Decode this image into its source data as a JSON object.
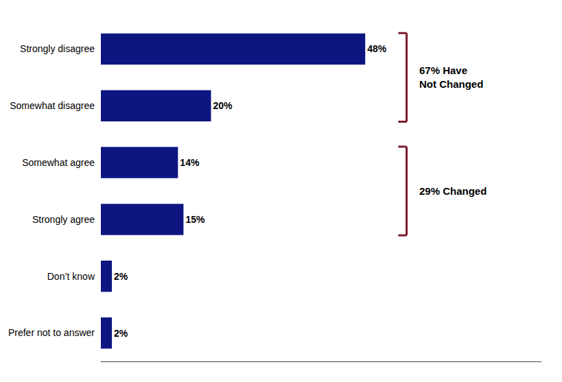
{
  "chart_data": {
    "type": "bar",
    "orientation": "horizontal",
    "categories": [
      "Strongly disagree",
      "Somewhat disagree",
      "Somewhat agree",
      "Strongly agree",
      "Don’t know",
      "Prefer not to answer"
    ],
    "values": [
      48,
      20,
      14,
      15,
      2,
      2
    ],
    "value_labels": [
      "48%",
      "20%",
      "14%",
      "15%",
      "2%",
      "2%"
    ],
    "data_labels": true,
    "color": "#0d1680",
    "xlim": [
      0,
      80
    ],
    "tick_labels": "y",
    "grid": false,
    "annotations": [
      {
        "text": "67% Have\nNot Changed",
        "categories": [
          "Strongly disagree",
          "Somewhat disagree"
        ],
        "color": "#7b1a2e"
      },
      {
        "text": "29% Changed",
        "categories": [
          "Somewhat agree",
          "Strongly agree"
        ],
        "color": "#7b1a2e"
      }
    ]
  }
}
